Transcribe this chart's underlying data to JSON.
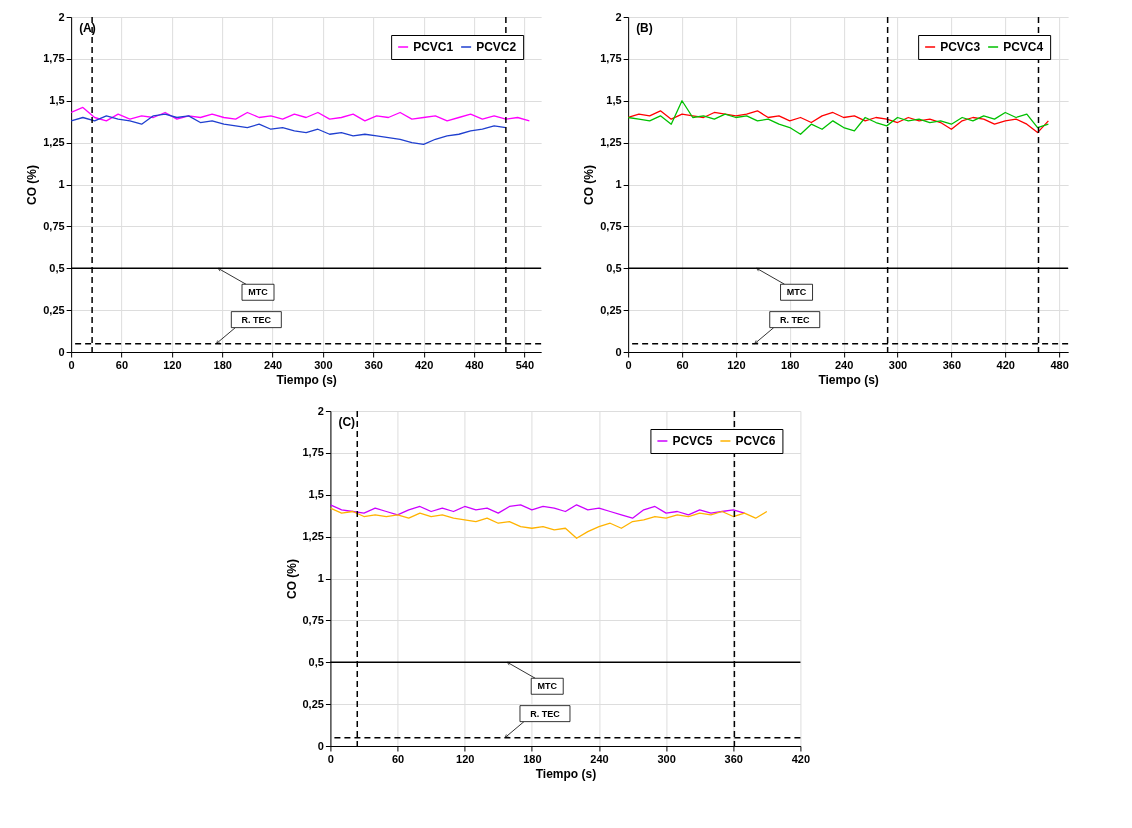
{
  "chart_data": [
    {
      "type": "line",
      "xlabel": "Tiempo (s)",
      "ylabel": "CO (%)",
      "xlim": [
        0,
        560
      ],
      "xticks": [
        0,
        60,
        120,
        180,
        240,
        300,
        360,
        420,
        480,
        540
      ],
      "ylim": [
        0,
        2
      ],
      "yticks": [
        0,
        {
          "value": 0.25,
          "label": "0,25"
        },
        {
          "value": 0.5,
          "label": "0,5"
        },
        {
          "value": 0.75,
          "label": "0,75"
        },
        1,
        {
          "value": 1.25,
          "label": "1,25"
        },
        {
          "value": 1.5,
          "label": "1,5"
        },
        {
          "value": 1.75,
          "label": "1,75"
        },
        2
      ],
      "grid": true,
      "legend": "top right",
      "series": [
        {
          "name": "PCVC1",
          "color": "#ff00ff",
          "x": [
            0,
            14,
            28,
            42,
            56,
            70,
            84,
            98,
            112,
            126,
            140,
            154,
            168,
            182,
            196,
            210,
            224,
            238,
            252,
            266,
            280,
            294,
            308,
            322,
            336,
            350,
            364,
            378,
            392,
            406,
            420,
            434,
            448,
            462,
            476,
            490,
            504,
            518,
            532,
            546
          ],
          "values": [
            1.43,
            1.46,
            1.4,
            1.38,
            1.42,
            1.39,
            1.41,
            1.4,
            1.43,
            1.39,
            1.41,
            1.4,
            1.42,
            1.4,
            1.39,
            1.43,
            1.4,
            1.41,
            1.39,
            1.42,
            1.4,
            1.43,
            1.39,
            1.4,
            1.42,
            1.38,
            1.41,
            1.4,
            1.43,
            1.39,
            1.4,
            1.41,
            1.38,
            1.4,
            1.42,
            1.39,
            1.41,
            1.39,
            1.4,
            1.38
          ]
        },
        {
          "name": "PCVC2",
          "color": "#1f3fcf",
          "x": [
            0,
            14,
            28,
            42,
            56,
            70,
            84,
            98,
            112,
            126,
            140,
            154,
            168,
            182,
            196,
            210,
            224,
            238,
            252,
            266,
            280,
            294,
            308,
            322,
            336,
            350,
            364,
            378,
            392,
            406,
            420,
            434,
            448,
            462,
            476,
            490,
            504,
            518
          ],
          "values": [
            1.38,
            1.4,
            1.38,
            1.41,
            1.39,
            1.38,
            1.36,
            1.41,
            1.42,
            1.4,
            1.41,
            1.37,
            1.38,
            1.36,
            1.35,
            1.34,
            1.36,
            1.33,
            1.34,
            1.32,
            1.31,
            1.33,
            1.3,
            1.31,
            1.29,
            1.3,
            1.29,
            1.28,
            1.27,
            1.25,
            1.24,
            1.27,
            1.29,
            1.3,
            1.32,
            1.33,
            1.35,
            1.34
          ]
        }
      ],
      "ref_lines": [
        {
          "axis": "y",
          "value": 0.5,
          "line_style": "solid"
        },
        {
          "axis": "y",
          "value": 0.05,
          "line_style": "dashed"
        },
        {
          "axis": "x",
          "value": 25,
          "line_style": "dashed"
        },
        {
          "axis": "x",
          "value": 518,
          "line_style": "dashed"
        }
      ],
      "annotations": [
        "(A)",
        {
          "text": "MTC",
          "x": 175,
          "y": 0.5
        },
        {
          "text": "R. TEC",
          "x": 173,
          "y": 0.05
        }
      ]
    },
    {
      "type": "line",
      "xlabel": "Tiempo (s)",
      "ylabel": "CO (%)",
      "xlim": [
        0,
        490
      ],
      "xticks": [
        0,
        60,
        120,
        180,
        240,
        300,
        360,
        420,
        480
      ],
      "ylim": [
        0,
        2
      ],
      "yticks": [
        0,
        {
          "value": 0.25,
          "label": "0,25"
        },
        {
          "value": 0.5,
          "label": "0,5"
        },
        {
          "value": 0.75,
          "label": "0,75"
        },
        1,
        {
          "value": 1.25,
          "label": "1,25"
        },
        {
          "value": 1.5,
          "label": "1,5"
        },
        {
          "value": 1.75,
          "label": "1,75"
        },
        2
      ],
      "grid": true,
      "legend": "top right",
      "series": [
        {
          "name": "PCVC3",
          "color": "#ff0000",
          "x": [
            0,
            12,
            24,
            36,
            48,
            60,
            72,
            84,
            96,
            108,
            120,
            132,
            144,
            156,
            168,
            180,
            192,
            204,
            216,
            228,
            240,
            252,
            264,
            276,
            288,
            300,
            312,
            324,
            336,
            348,
            360,
            372,
            384,
            396,
            408,
            420,
            432,
            444,
            456,
            468
          ],
          "values": [
            1.4,
            1.42,
            1.41,
            1.44,
            1.39,
            1.42,
            1.41,
            1.4,
            1.43,
            1.42,
            1.41,
            1.42,
            1.44,
            1.4,
            1.41,
            1.38,
            1.4,
            1.37,
            1.41,
            1.43,
            1.4,
            1.41,
            1.38,
            1.4,
            1.39,
            1.37,
            1.4,
            1.38,
            1.39,
            1.37,
            1.33,
            1.38,
            1.4,
            1.39,
            1.36,
            1.38,
            1.39,
            1.36,
            1.31,
            1.38
          ]
        },
        {
          "name": "PCVC4",
          "color": "#00c000",
          "x": [
            0,
            12,
            24,
            36,
            48,
            60,
            72,
            84,
            96,
            108,
            120,
            132,
            144,
            156,
            168,
            180,
            192,
            204,
            216,
            228,
            240,
            252,
            264,
            276,
            288,
            300,
            312,
            324,
            336,
            348,
            360,
            372,
            384,
            396,
            408,
            420,
            432,
            444,
            456,
            468
          ],
          "values": [
            1.4,
            1.39,
            1.38,
            1.41,
            1.36,
            1.5,
            1.4,
            1.41,
            1.39,
            1.42,
            1.4,
            1.41,
            1.38,
            1.39,
            1.36,
            1.34,
            1.3,
            1.36,
            1.33,
            1.38,
            1.34,
            1.32,
            1.4,
            1.37,
            1.35,
            1.4,
            1.38,
            1.39,
            1.37,
            1.38,
            1.36,
            1.4,
            1.38,
            1.41,
            1.39,
            1.43,
            1.4,
            1.42,
            1.34,
            1.36
          ]
        }
      ],
      "ref_lines": [
        {
          "axis": "y",
          "value": 0.5,
          "line_style": "solid"
        },
        {
          "axis": "y",
          "value": 0.05,
          "line_style": "dashed"
        },
        {
          "axis": "x",
          "value": 289,
          "line_style": "dashed"
        },
        {
          "axis": "x",
          "value": 457,
          "line_style": "dashed"
        }
      ],
      "annotations": [
        "(B)",
        {
          "text": "MTC",
          "x": 143,
          "y": 0.5
        },
        {
          "text": "R. TEC",
          "x": 141,
          "y": 0.05
        }
      ]
    },
    {
      "type": "line",
      "xlabel": "Tiempo (s)",
      "ylabel": "CO (%)",
      "xlim": [
        0,
        420
      ],
      "xticks": [
        0,
        60,
        120,
        180,
        240,
        300,
        360,
        420
      ],
      "ylim": [
        0,
        2
      ],
      "yticks": [
        0,
        {
          "value": 0.25,
          "label": "0,25"
        },
        {
          "value": 0.5,
          "label": "0,5"
        },
        {
          "value": 0.75,
          "label": "0,75"
        },
        1,
        {
          "value": 1.25,
          "label": "1,25"
        },
        {
          "value": 1.5,
          "label": "1,5"
        },
        {
          "value": 1.75,
          "label": "1,75"
        },
        2
      ],
      "grid": true,
      "legend": "top right",
      "series": [
        {
          "name": "PCVC5",
          "color": "#cc00ff",
          "x": [
            0,
            10,
            20,
            30,
            40,
            50,
            60,
            70,
            80,
            90,
            100,
            110,
            120,
            130,
            140,
            150,
            160,
            170,
            180,
            190,
            200,
            210,
            220,
            230,
            240,
            250,
            260,
            270,
            280,
            290,
            300,
            310,
            320,
            330,
            340,
            350,
            360,
            370
          ],
          "values": [
            1.44,
            1.41,
            1.4,
            1.39,
            1.42,
            1.4,
            1.38,
            1.41,
            1.43,
            1.4,
            1.42,
            1.4,
            1.43,
            1.41,
            1.42,
            1.39,
            1.43,
            1.44,
            1.41,
            1.43,
            1.42,
            1.4,
            1.44,
            1.41,
            1.42,
            1.4,
            1.38,
            1.36,
            1.41,
            1.43,
            1.39,
            1.4,
            1.38,
            1.41,
            1.39,
            1.4,
            1.41,
            1.39
          ]
        },
        {
          "name": "PCVC6",
          "color": "#ffb300",
          "x": [
            0,
            10,
            20,
            30,
            40,
            50,
            60,
            70,
            80,
            90,
            100,
            110,
            120,
            130,
            140,
            150,
            160,
            170,
            180,
            190,
            200,
            210,
            220,
            230,
            240,
            250,
            260,
            270,
            280,
            290,
            300,
            310,
            320,
            330,
            340,
            350,
            360,
            370,
            380,
            390
          ],
          "values": [
            1.42,
            1.39,
            1.4,
            1.37,
            1.38,
            1.37,
            1.38,
            1.36,
            1.39,
            1.37,
            1.38,
            1.36,
            1.35,
            1.34,
            1.36,
            1.33,
            1.34,
            1.31,
            1.3,
            1.31,
            1.29,
            1.3,
            1.24,
            1.28,
            1.31,
            1.33,
            1.3,
            1.34,
            1.35,
            1.37,
            1.36,
            1.38,
            1.37,
            1.39,
            1.38,
            1.4,
            1.37,
            1.39,
            1.36,
            1.4
          ]
        }
      ],
      "ref_lines": [
        {
          "axis": "y",
          "value": 0.5,
          "line_style": "solid"
        },
        {
          "axis": "y",
          "value": 0.05,
          "line_style": "dashed"
        },
        {
          "axis": "x",
          "value": 24,
          "line_style": "dashed"
        },
        {
          "axis": "x",
          "value": 361,
          "line_style": "dashed"
        }
      ],
      "annotations": [
        "(C)",
        {
          "text": "MTC",
          "x": 158,
          "y": 0.5
        },
        {
          "text": "R. TEC",
          "x": 156,
          "y": 0.05
        }
      ]
    }
  ]
}
